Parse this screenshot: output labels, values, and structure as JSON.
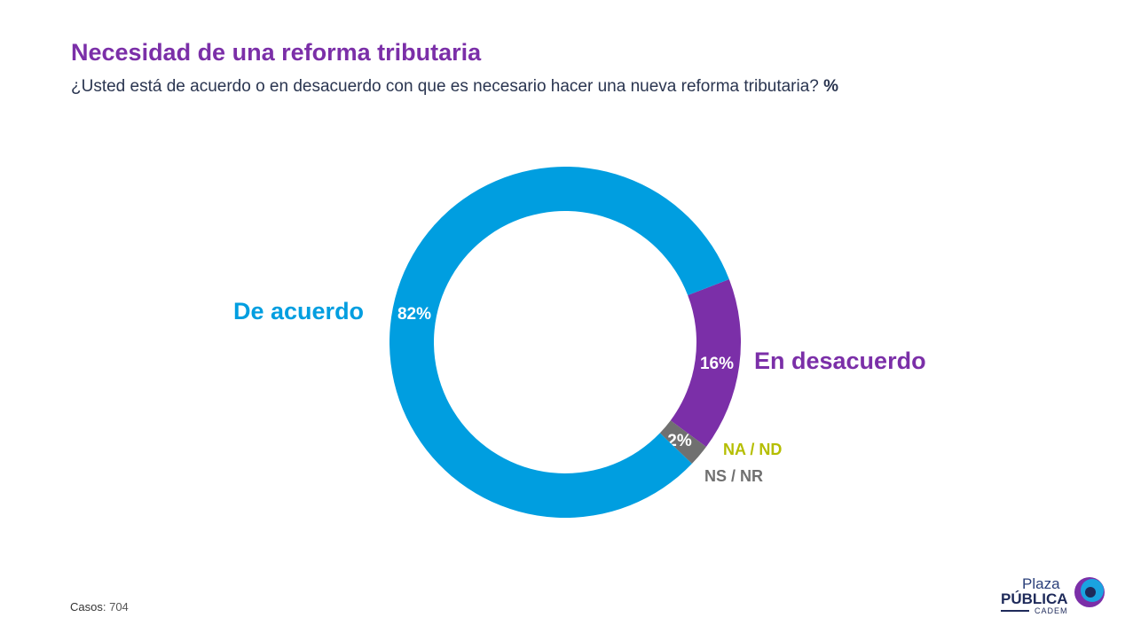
{
  "header": {
    "title": "Necesidad de una reforma tributaria",
    "subtitle": "¿Usted está de acuerdo o en desacuerdo con que es necesario hacer una nueva reforma tributaria?",
    "subtitle_unit": "%"
  },
  "chart_data": {
    "type": "pie",
    "title": "Necesidad de una reforma tributaria",
    "slices": [
      {
        "name": "En desacuerdo",
        "value": 16,
        "label": "16%",
        "color": "#7b2fa8"
      },
      {
        "name": "NS / NR",
        "value": 2,
        "label": "2%",
        "color": "#707070"
      },
      {
        "name": "NA / ND",
        "value": 0,
        "label": "",
        "color": "#b5be00"
      },
      {
        "name": "De acuerdo",
        "value": 82,
        "label": "82%",
        "color": "#009ee0"
      }
    ]
  },
  "footer": {
    "cases_label": "Casos",
    "cases_value": "704"
  },
  "logo": {
    "line1": "Plaza",
    "line2": "PÚBLICA",
    "line3": "CADEM"
  }
}
